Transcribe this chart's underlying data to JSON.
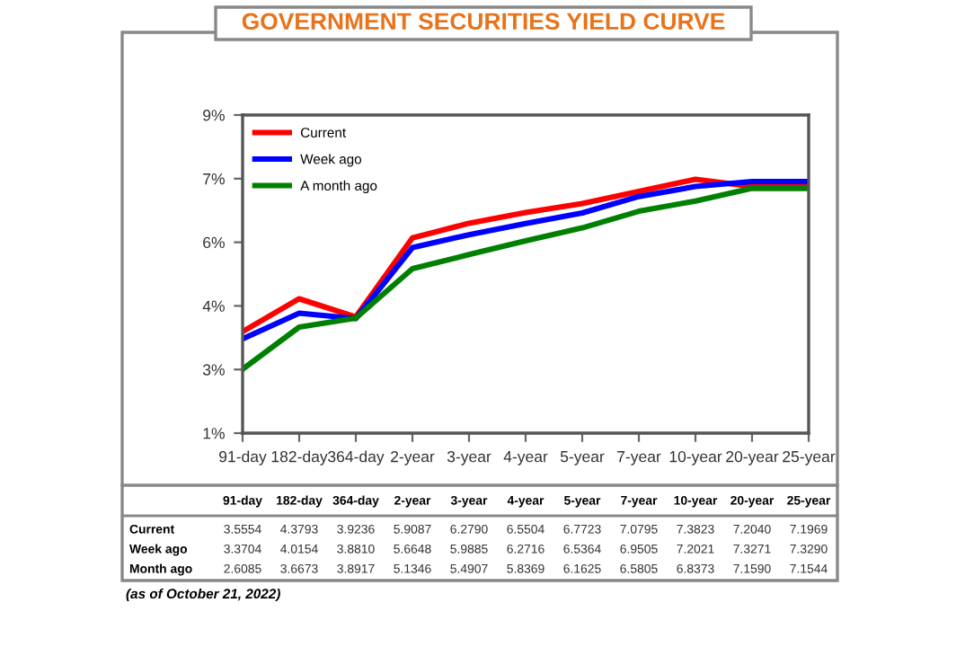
{
  "chart_data": {
    "type": "line",
    "title": "GOVERNMENT SECURITIES YIELD CURVE",
    "categories": [
      "91-day",
      "182-day",
      "364-day",
      "2-year",
      "3-year",
      "4-year",
      "5-year",
      "7-year",
      "10-year",
      "20-year",
      "25-year"
    ],
    "series": [
      {
        "name": "Current",
        "color": "#ff0000",
        "values": [
          3.5554,
          4.3793,
          3.9236,
          5.9087,
          6.279,
          6.5504,
          6.7723,
          7.0795,
          7.3823,
          7.204,
          7.1969
        ],
        "value_labels": [
          "3.5554",
          "4.3793",
          "3.9236",
          "5.9087",
          "6.2790",
          "6.5504",
          "6.7723",
          "7.0795",
          "7.3823",
          "7.2040",
          "7.1969"
        ]
      },
      {
        "name": "Week ago",
        "color": "#0000ff",
        "values": [
          3.3704,
          4.0154,
          3.881,
          5.6648,
          5.9885,
          6.2716,
          6.5364,
          6.9505,
          7.2021,
          7.3271,
          7.329
        ],
        "value_labels": [
          "3.3704",
          "4.0154",
          "3.8810",
          "5.6648",
          "5.9885",
          "6.2716",
          "6.5364",
          "6.9505",
          "7.2021",
          "7.3271",
          "7.3290"
        ]
      },
      {
        "name": "A month ago",
        "color": "#008000",
        "values": [
          2.6085,
          3.6673,
          3.8917,
          5.1346,
          5.4907,
          5.8369,
          6.1625,
          6.5805,
          6.8373,
          7.159,
          7.1544
        ],
        "value_labels": [
          "2.6085",
          "3.6673",
          "3.8917",
          "5.1346",
          "5.4907",
          "5.8369",
          "6.1625",
          "6.5805",
          "6.8373",
          "7.1590",
          "7.1544"
        ]
      }
    ],
    "ylim": [
      1,
      9
    ],
    "yticks": [
      {
        "value": 1,
        "label": "1%"
      },
      {
        "value": 2.6,
        "label": "3%"
      },
      {
        "value": 4.2,
        "label": "4%"
      },
      {
        "value": 5.8,
        "label": "6%"
      },
      {
        "value": 7.4,
        "label": "7%"
      },
      {
        "value": 9,
        "label": "9%"
      }
    ],
    "grid": false,
    "legend": "top left",
    "marker": "none",
    "line_style": "solid",
    "annotations": [
      "Current",
      "Week ago",
      "Month ago",
      "(as of October 21, 2022)"
    ]
  }
}
